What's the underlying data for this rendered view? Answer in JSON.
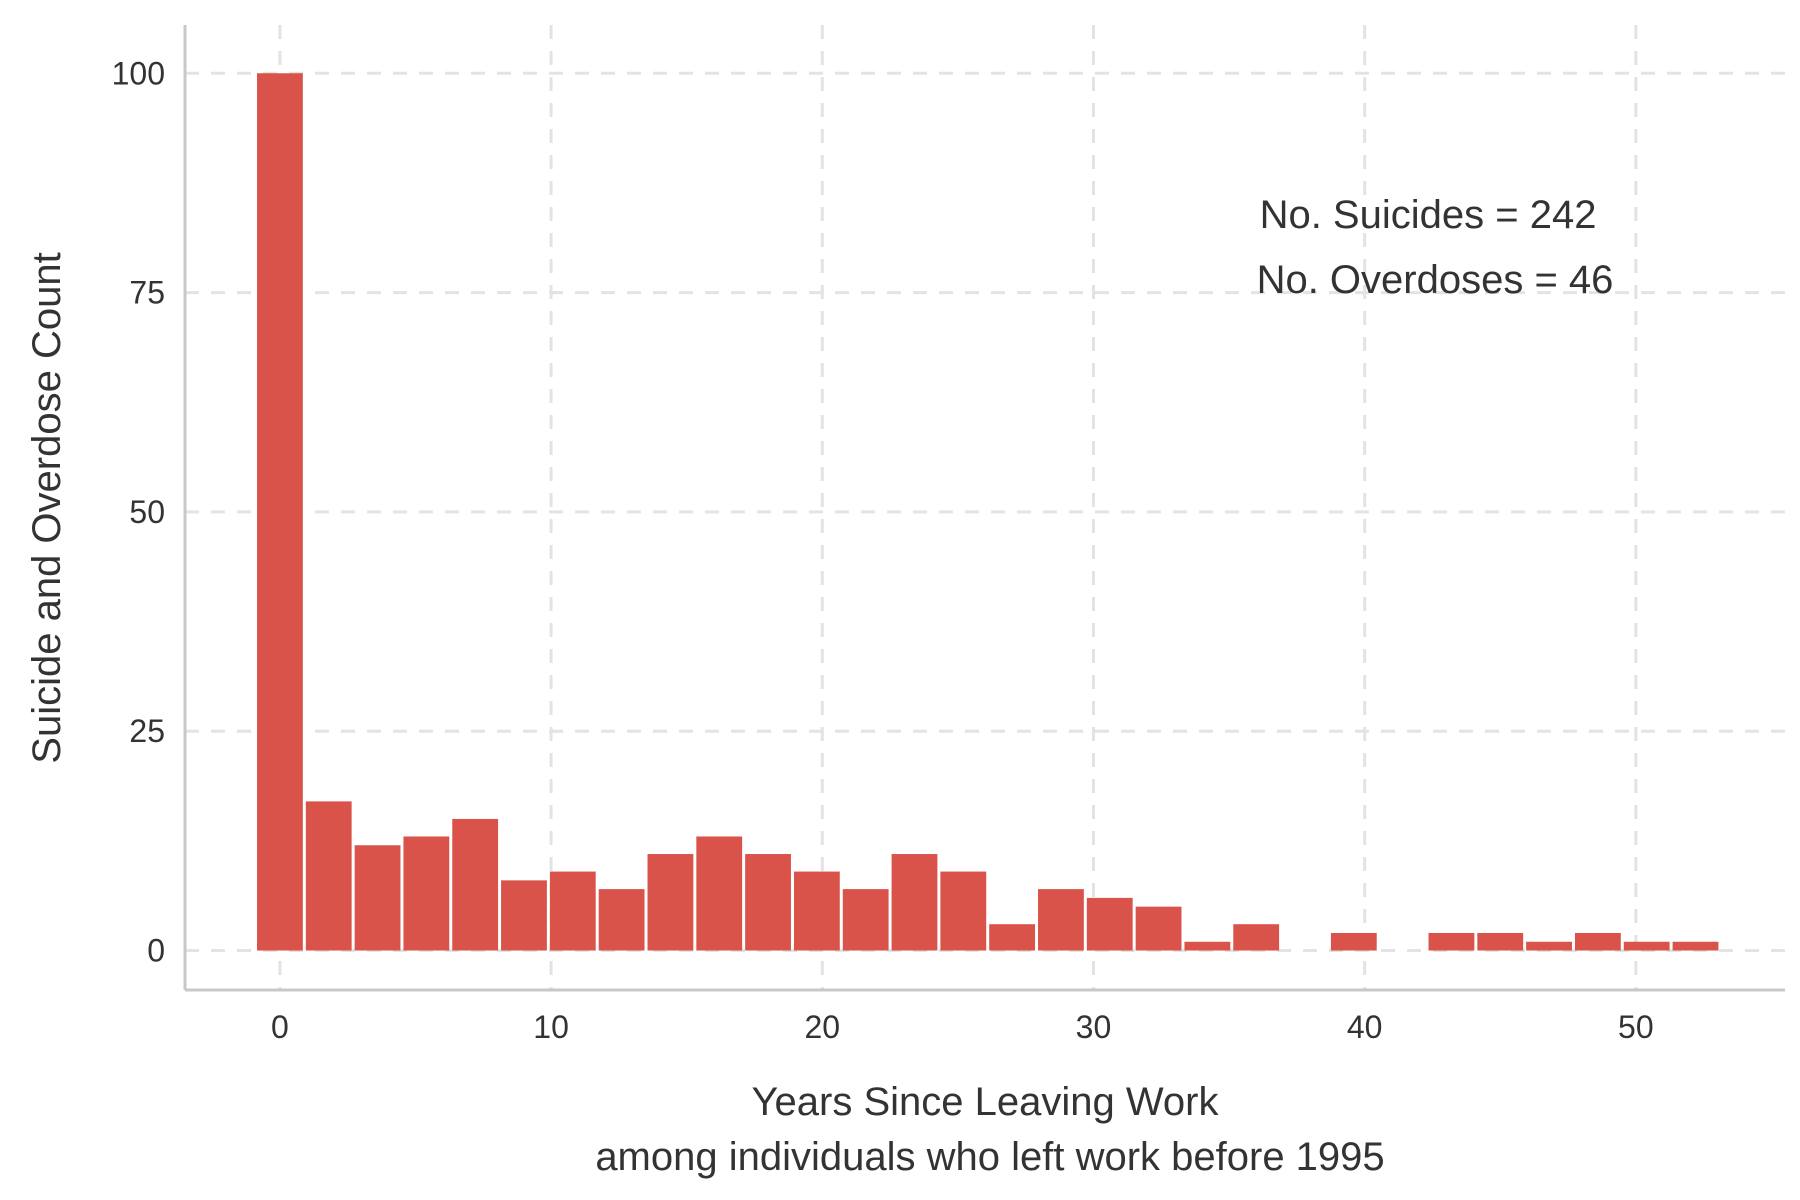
{
  "chart_data": {
    "type": "bar",
    "xlabel": "Years Since Leaving Work",
    "xlabel_sub": "among individuals who left work before 1995",
    "ylabel": "Suicide and Overdose Count",
    "xlim": [
      -3.5,
      55.5
    ],
    "ylim": [
      -4.5,
      105.5
    ],
    "x_ticks": [
      0,
      10,
      20,
      30,
      40,
      50
    ],
    "y_ticks": [
      0,
      25,
      50,
      75,
      100
    ],
    "grid": true,
    "bar_color": "#d9534a",
    "bin_width": 1.8,
    "x": [
      0,
      1.8,
      3.6,
      5.4,
      7.2,
      9.0,
      10.8,
      12.6,
      14.4,
      16.2,
      18.0,
      19.8,
      21.6,
      23.4,
      25.2,
      27.0,
      28.8,
      30.6,
      32.4,
      34.2,
      36.0,
      37.8,
      39.6,
      41.4,
      43.2,
      45.0,
      46.8,
      48.6,
      50.4,
      52.2
    ],
    "values": [
      100,
      17,
      12,
      13,
      15,
      8,
      9,
      7,
      11,
      13,
      11,
      9,
      7,
      11,
      9,
      3,
      7,
      6,
      5,
      1,
      3,
      0,
      2,
      0,
      2,
      2,
      1,
      2,
      1,
      1
    ],
    "annotations": [
      "No. Suicides = 242",
      "No. Overdoses = 46"
    ]
  }
}
